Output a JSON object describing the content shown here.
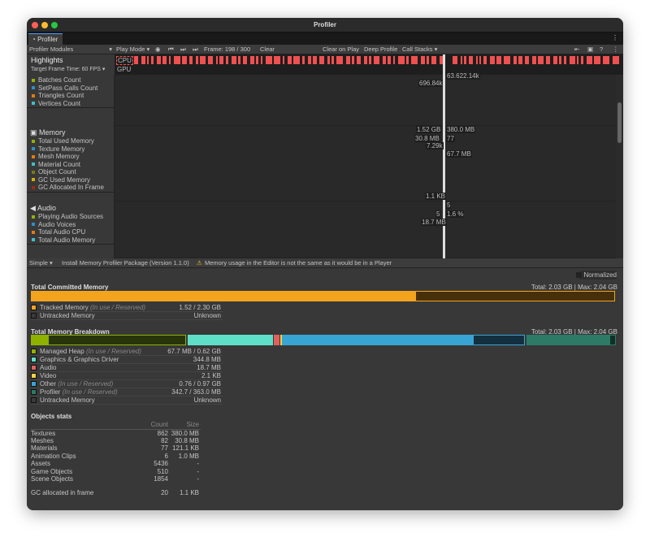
{
  "window": {
    "title": "Profiler"
  },
  "tab": {
    "label": "Profiler",
    "icon": "profiler-icon"
  },
  "toolbar": {
    "modules": "Profiler Modules",
    "play_mode": "Play Mode",
    "frame": "Frame: 198 / 300",
    "clear": "Clear",
    "clear_on_play": "Clear on Play",
    "deep_profile": "Deep Profile",
    "call_stacks": "Call Stacks"
  },
  "highlights": {
    "title": "Highlights",
    "target": "Target Frame Time: 60 FPS",
    "cpu": "CPU",
    "gpu": "GPU",
    "cpu_color": "#f05050"
  },
  "modules": [
    {
      "title": "",
      "items": [
        {
          "label": "Batches Count",
          "color": "#8fb200"
        },
        {
          "label": "SetPass Calls Count",
          "color": "#2d8ec7"
        },
        {
          "label": "Triangles Count",
          "color": "#e37b10"
        },
        {
          "label": "Vertices Count",
          "color": "#3cc0c8"
        }
      ],
      "labels": [
        "63.622.14k",
        "696.84k"
      ]
    },
    {
      "title": "Memory",
      "items": [
        {
          "label": "Total Used Memory",
          "color": "#8fb200"
        },
        {
          "label": "Texture Memory",
          "color": "#2d8ec7"
        },
        {
          "label": "Mesh Memory",
          "color": "#e37b10"
        },
        {
          "label": "Material Count",
          "color": "#3cc0c8"
        },
        {
          "label": "Object Count",
          "color": "#7a7a10"
        },
        {
          "label": "GC Used Memory",
          "color": "#d4b000"
        },
        {
          "label": "GC Allocated In Frame",
          "color": "#9a2a10"
        }
      ],
      "labels": [
        "1.52 GB",
        "380.0 MB",
        "30.8 MB",
        "77",
        "7.29k",
        "67.7 MB",
        "1.1 KB"
      ]
    },
    {
      "title": "Audio",
      "items": [
        {
          "label": "Playing Audio Sources",
          "color": "#8fb200"
        },
        {
          "label": "Audio Voices",
          "color": "#2d8ec7"
        },
        {
          "label": "Total Audio CPU",
          "color": "#e37b10"
        },
        {
          "label": "Total Audio Memory",
          "color": "#3cc0c8"
        }
      ],
      "labels": [
        "5",
        "5",
        "1.6 %",
        "18.7 MB"
      ]
    }
  ],
  "bottom_toolbar": {
    "view": "Simple",
    "install": "Install Memory Profiler Package (Version 1.1.0)",
    "warning": "Memory usage in the Editor is not the same as it would be in a Player"
  },
  "detail": {
    "normalized": "Normalized",
    "committed": {
      "title": "Total Committed Memory",
      "total": "Total: 2.03 GB",
      "max": "Max: 2.04 GB",
      "in_use_fraction": 0.66,
      "rows": [
        {
          "label": "Tracked Memory",
          "sub": "(In use / Reserved)",
          "value": "1.52 / 2.30 GB",
          "color": "#f4a31f"
        },
        {
          "label": "Untracked Memory",
          "sub": "",
          "value": "Unknown",
          "color": "#3a3a3a"
        }
      ]
    },
    "breakdown": {
      "title": "Total Memory Breakdown",
      "total": "Total: 2.03 GB",
      "max": "Max: 2.04 GB",
      "rows": [
        {
          "label": "Managed Heap",
          "sub": "(In use / Reserved)",
          "value": "67.7 MB / 0.62 GB",
          "color": "#8fb200"
        },
        {
          "label": "Graphics & Graphics Driver",
          "sub": "",
          "value": "344.8 MB",
          "color": "#5fdfc8"
        },
        {
          "label": "Audio",
          "sub": "",
          "value": "18.7 MB",
          "color": "#e06060"
        },
        {
          "label": "Video",
          "sub": "",
          "value": "2.1 KB",
          "color": "#f5d040"
        },
        {
          "label": "Other",
          "sub": "(In use / Reserved)",
          "value": "0.76 / 0.97 GB",
          "color": "#38a4d4"
        },
        {
          "label": "Profiler",
          "sub": "(In use / Reserved)",
          "value": "342.7 / 363.0 MB",
          "color": "#2d7a66"
        },
        {
          "label": "Untracked Memory",
          "sub": "",
          "value": "Unknown",
          "color": "#3a3a3a"
        }
      ]
    },
    "objects": {
      "title": "Objects stats",
      "count_header": "Count",
      "size_header": "Size",
      "rows": [
        {
          "name": "Textures",
          "count": "862",
          "size": "380.0 MB"
        },
        {
          "name": "Meshes",
          "count": "82",
          "size": "30.8 MB"
        },
        {
          "name": "Materials",
          "count": "77",
          "size": "121.1 KB"
        },
        {
          "name": "Animation Clips",
          "count": "6",
          "size": "1.0 MB"
        },
        {
          "name": "Assets",
          "count": "5436",
          "size": "-"
        },
        {
          "name": "Game Objects",
          "count": "510",
          "size": "-"
        },
        {
          "name": "Scene Objects",
          "count": "1854",
          "size": "-"
        }
      ],
      "gc": {
        "name": "GC allocated in frame",
        "count": "20",
        "size": "1.1 KB"
      }
    }
  }
}
